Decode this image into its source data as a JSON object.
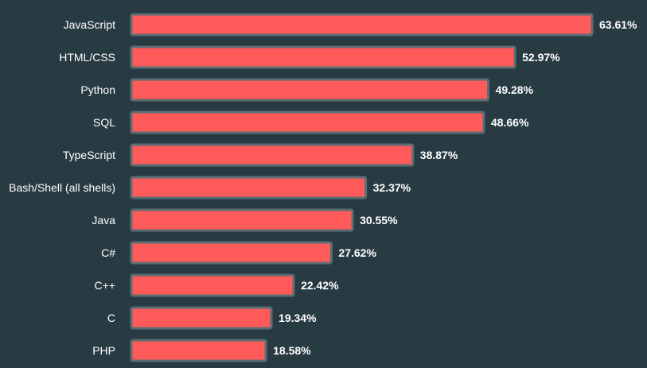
{
  "colors": {
    "background": "#283b42",
    "bar_fill": "#ff5a5a",
    "bar_border": "#5a6d73",
    "text": "#ffffff"
  },
  "chart_data": {
    "type": "bar",
    "orientation": "horizontal",
    "categories": [
      "JavaScript",
      "HTML/CSS",
      "Python",
      "SQL",
      "TypeScript",
      "Bash/Shell (all shells)",
      "Java",
      "C#",
      "C++",
      "C",
      "PHP"
    ],
    "values": [
      63.61,
      52.97,
      49.28,
      48.66,
      38.87,
      32.37,
      30.55,
      27.62,
      22.42,
      19.34,
      18.58
    ],
    "value_labels": [
      "63.61%",
      "52.97%",
      "49.28%",
      "48.66%",
      "38.87%",
      "32.37%",
      "30.55%",
      "27.62%",
      "22.42%",
      "19.34%",
      "18.58%"
    ],
    "xlim": [
      0,
      63.61
    ],
    "unit": "%",
    "grid": false,
    "legend": "none"
  }
}
